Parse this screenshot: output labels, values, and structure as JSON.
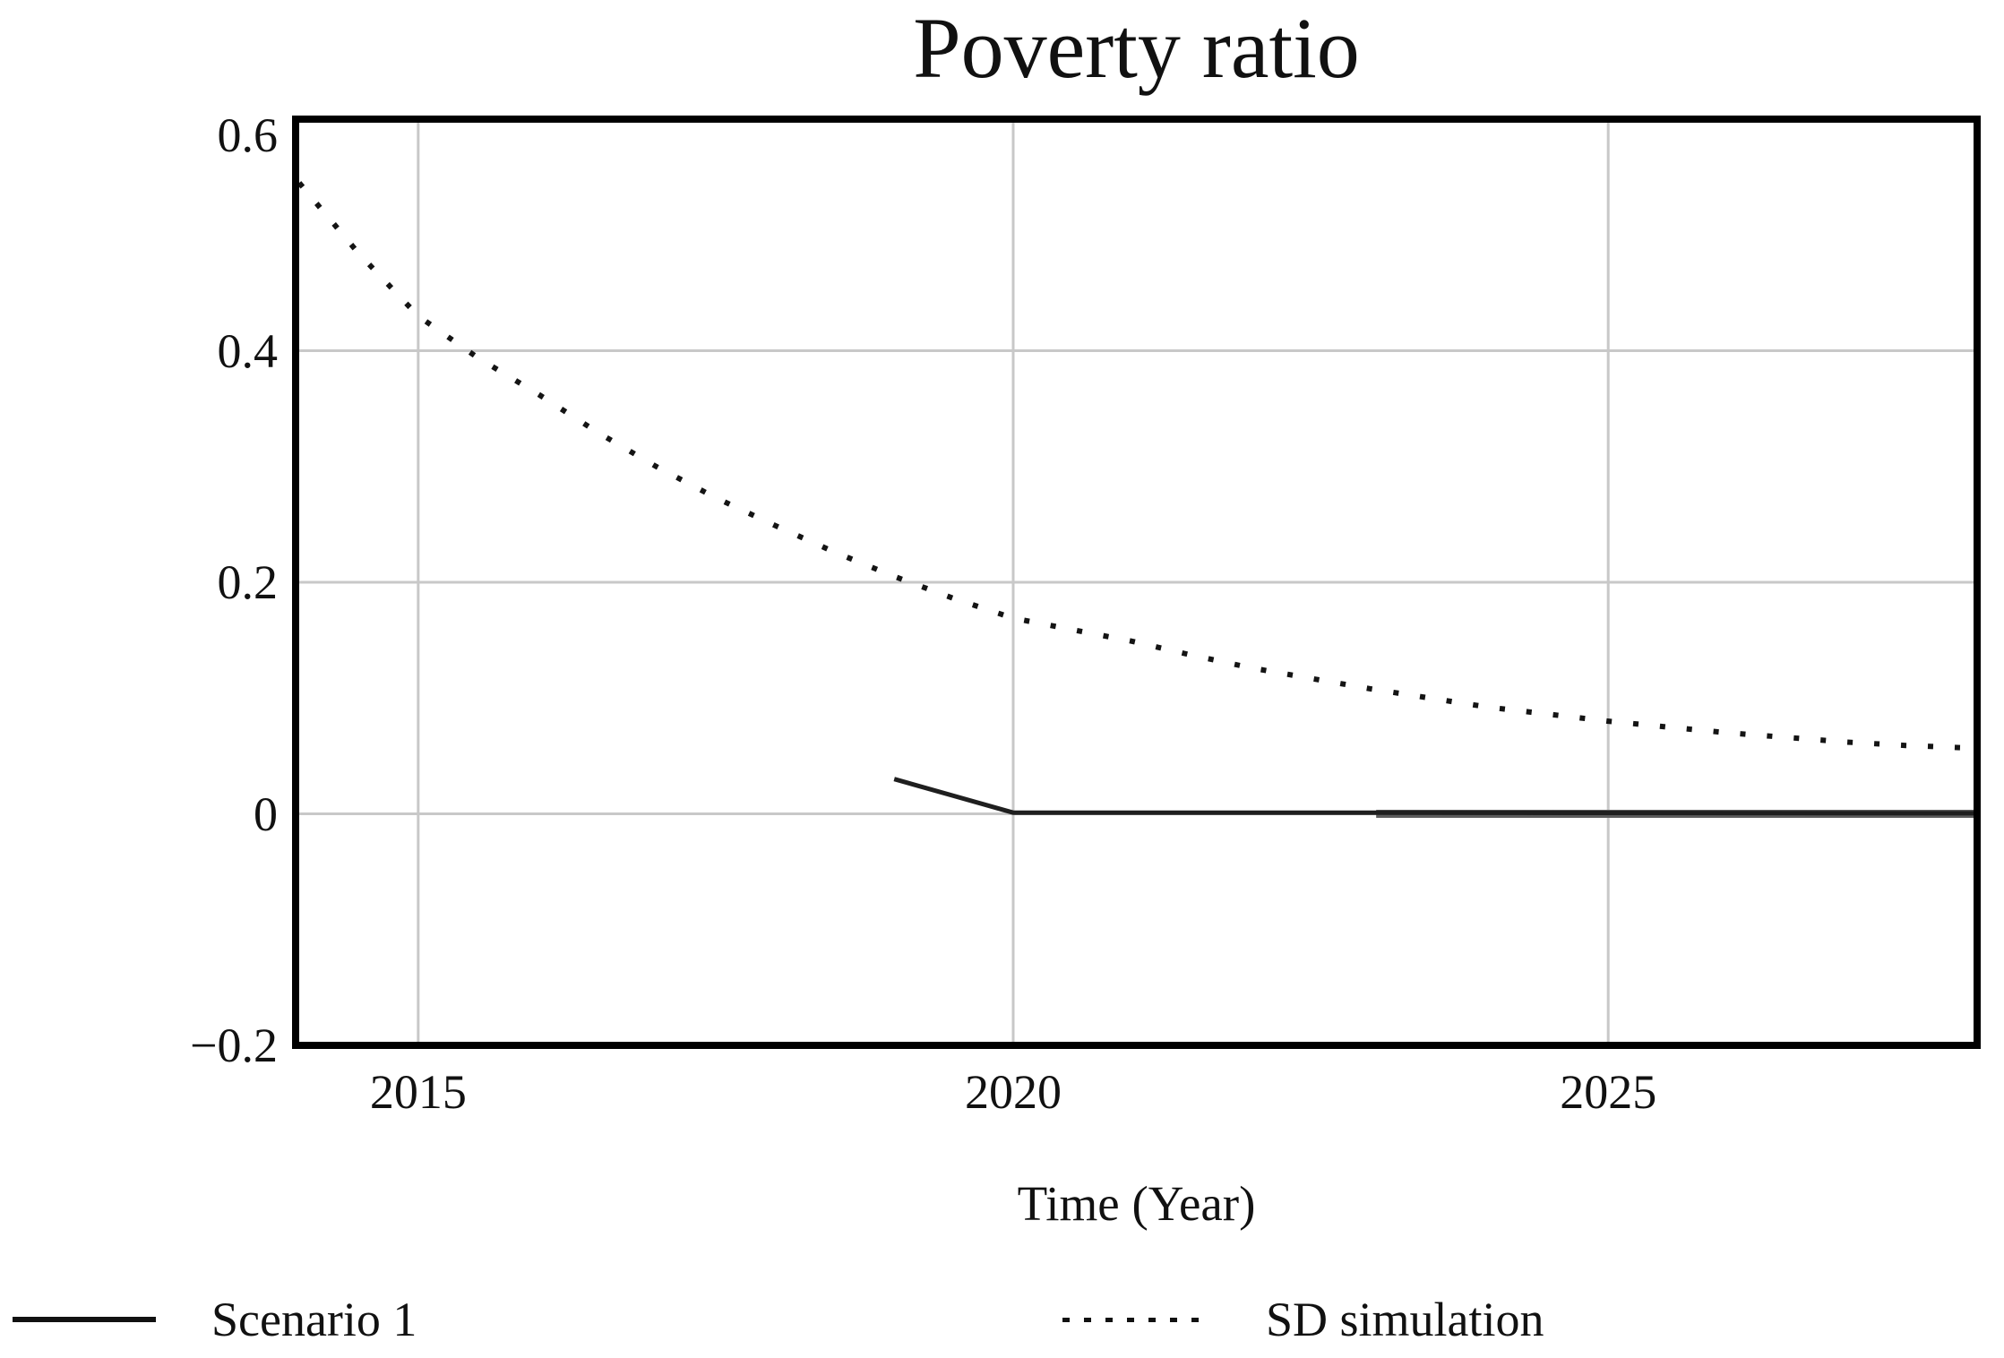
{
  "figure": {
    "title": "Poverty ratio",
    "x_axis_label": "Time (Year)"
  },
  "legend": {
    "items": [
      {
        "label": "Scenario 1",
        "style": "solid"
      },
      {
        "label": "SD simulation",
        "style": "dotted"
      }
    ]
  },
  "chart_data": {
    "type": "line",
    "title": "Poverty ratio",
    "xlabel": "Time (Year)",
    "ylabel": "",
    "x_domain": [
      2013.97,
      2028.1
    ],
    "y_domain": [
      -0.2,
      0.6
    ],
    "grid": {
      "x_years": [
        2015,
        2020,
        2025
      ],
      "y_values": [
        0.4,
        0.2,
        0.0
      ]
    },
    "x_ticks": [
      {
        "value": 2015,
        "label": "2015"
      },
      {
        "value": 2020,
        "label": "2020"
      },
      {
        "value": 2025,
        "label": "2025"
      }
    ],
    "y_ticks": [
      {
        "value": 0.6,
        "label": "0.6"
      },
      {
        "value": 0.4,
        "label": "0.4"
      },
      {
        "value": 0.2,
        "label": "0.2"
      },
      {
        "value": 0.0,
        "label": "0"
      },
      {
        "value": -0.2,
        "label": "−0.2"
      }
    ],
    "series": [
      {
        "name": "SD simulation",
        "style": "dotted",
        "points": [
          [
            2014.0,
            0.545
          ],
          [
            2014.5,
            0.484
          ],
          [
            2015.0,
            0.43
          ],
          [
            2015.5,
            0.394
          ],
          [
            2016.0,
            0.363
          ],
          [
            2016.5,
            0.33
          ],
          [
            2017.0,
            0.3
          ],
          [
            2017.5,
            0.273
          ],
          [
            2018.0,
            0.249
          ],
          [
            2018.5,
            0.226
          ],
          [
            2019.0,
            0.205
          ],
          [
            2019.5,
            0.186
          ],
          [
            2020.0,
            0.169
          ],
          [
            2020.5,
            0.159
          ],
          [
            2021.0,
            0.149
          ],
          [
            2021.5,
            0.137
          ],
          [
            2022.0,
            0.126
          ],
          [
            2022.5,
            0.117
          ],
          [
            2023.0,
            0.108
          ],
          [
            2023.5,
            0.1
          ],
          [
            2024.0,
            0.092
          ],
          [
            2024.5,
            0.086
          ],
          [
            2025.0,
            0.08
          ],
          [
            2025.5,
            0.075
          ],
          [
            2026.0,
            0.07
          ],
          [
            2026.5,
            0.066
          ],
          [
            2027.0,
            0.062
          ],
          [
            2027.5,
            0.059
          ],
          [
            2028.0,
            0.057
          ],
          [
            2028.1,
            0.056
          ]
        ]
      },
      {
        "name": "Scenario 1",
        "style": "solid",
        "points": [
          [
            2019.0,
            0.03
          ],
          [
            2020.0,
            0.001
          ],
          [
            2023.05,
            0.001
          ],
          [
            2028.1,
            0.0005
          ]
        ]
      }
    ],
    "zero_overlap_segment": {
      "x_from": 2023.05,
      "x_to": 2028.1,
      "y": 0.0
    },
    "legend_entries": [
      "Scenario 1",
      "SD simulation"
    ],
    "legend_position": "bottom",
    "grid_on": true
  },
  "colors": {
    "background": "#ffffff",
    "axis_border": "#000000",
    "gridline": "#c8c8c8",
    "sd_line": "#141414",
    "scenario_line": "#1f1f1f",
    "zero_overlap": "#5c5c5c",
    "text": "#111111"
  }
}
